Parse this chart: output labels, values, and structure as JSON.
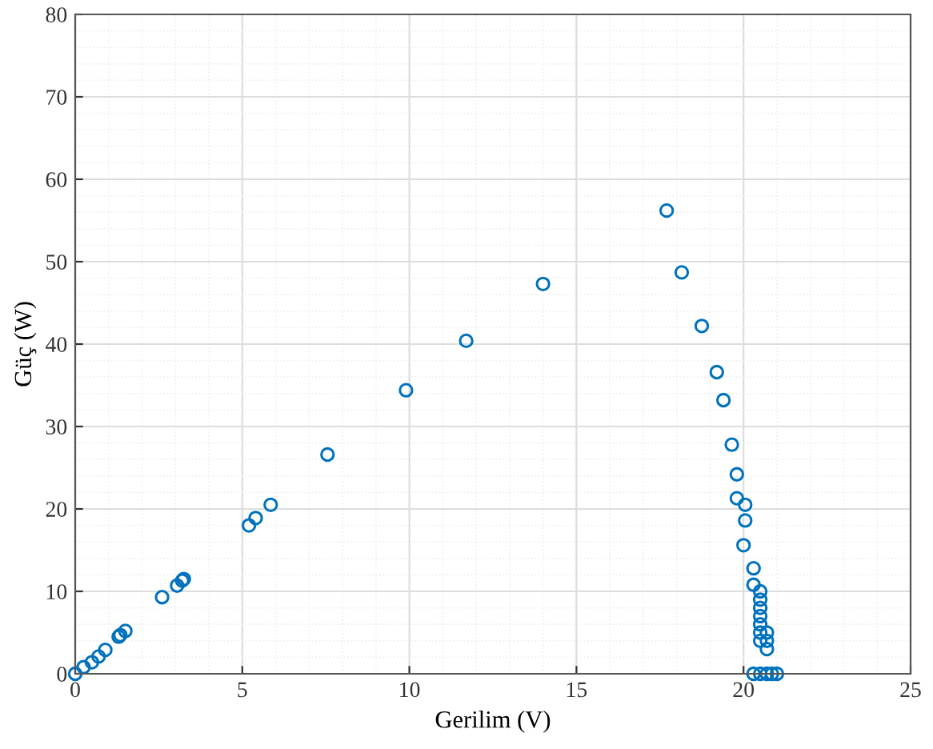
{
  "chart_data": {
    "type": "scatter",
    "xlabel": "Gerilim (V)",
    "ylabel": "Güç (W)",
    "x": [
      0,
      0.25,
      0.5,
      0.7,
      0.9,
      1.3,
      1.35,
      1.5,
      2.6,
      3.05,
      3.2,
      3.25,
      5.2,
      5.4,
      5.85,
      7.55,
      9.9,
      11.7,
      14.0,
      17.7,
      18.15,
      18.75,
      19.2,
      19.4,
      19.65,
      19.8,
      19.8,
      20.05,
      20.05,
      20.0,
      20.3,
      20.3,
      20.5,
      20.5,
      20.5,
      20.5,
      20.5,
      20.5,
      20.5,
      20.7,
      20.7,
      20.7,
      20.3,
      20.5,
      20.7,
      20.85,
      21.0
    ],
    "values": [
      0,
      0.8,
      1.4,
      2.1,
      2.9,
      4.5,
      4.7,
      5.2,
      9.3,
      10.7,
      11.3,
      11.5,
      18,
      18.9,
      20.5,
      26.6,
      34.4,
      40.4,
      47.3,
      56.2,
      48.7,
      42.2,
      36.6,
      33.2,
      27.8,
      24.2,
      21.3,
      20.5,
      18.6,
      15.6,
      12.8,
      10.8,
      10,
      9,
      8,
      7,
      6,
      5,
      4,
      5,
      4,
      3,
      0,
      0,
      0,
      0,
      0
    ],
    "color": "#0072bd",
    "marker": "circle",
    "xlim": [
      0,
      25
    ],
    "ylim": [
      0,
      80
    ],
    "xticks": [
      0,
      5,
      10,
      15,
      20,
      25
    ],
    "yticks": [
      0,
      10,
      20,
      30,
      40,
      50,
      60,
      70,
      80
    ],
    "grid": true
  }
}
